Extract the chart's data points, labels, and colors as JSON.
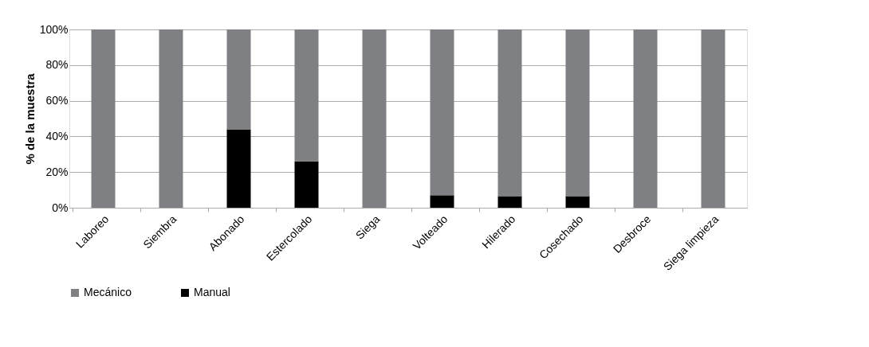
{
  "chart_data": {
    "type": "bar",
    "stacked": true,
    "ylabel": "% de la muestra",
    "categories": [
      "Laboreo",
      "Siembra",
      "Abonado",
      "Estercolado",
      "Siega",
      "Volteado",
      "Hilerado",
      "Cosechado",
      "Desbroce",
      "Siega limpieza"
    ],
    "series": [
      {
        "name": "Manual",
        "color": "#000000",
        "values": [
          0,
          0,
          44,
          26,
          0,
          7,
          6.5,
          6.5,
          0,
          0
        ]
      },
      {
        "name": "Mecánico",
        "color": "#7f8083",
        "values": [
          100,
          100,
          56,
          74,
          100,
          93,
          93.5,
          93.5,
          100,
          100
        ]
      }
    ],
    "ylim": [
      0,
      100
    ],
    "yticks": [
      {
        "value": 0,
        "label": "0%"
      },
      {
        "value": 20,
        "label": "20%"
      },
      {
        "value": 40,
        "label": "40%"
      },
      {
        "value": 60,
        "label": "60%"
      },
      {
        "value": 80,
        "label": "80%"
      },
      {
        "value": 100,
        "label": "100%"
      }
    ],
    "grid": "y",
    "legend": "bottom"
  }
}
